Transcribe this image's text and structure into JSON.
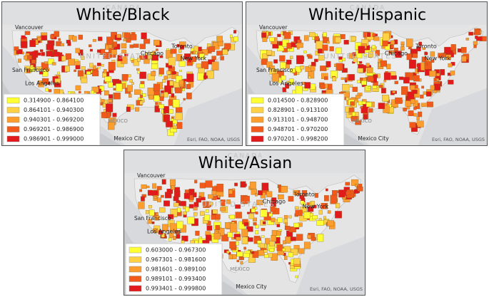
{
  "panels": [
    {
      "title": "White/Black",
      "legend": [
        {
          "label": "0.314900 - 0.864100",
          "color": "#ffff33"
        },
        {
          "label": "0.864101 - 0.940300",
          "color": "#fed045"
        },
        {
          "label": "0.940301 - 0.969200",
          "color": "#fd9d2e"
        },
        {
          "label": "0.969201 - 0.986900",
          "color": "#f25a1c"
        },
        {
          "label": "0.986901 - 0.999000",
          "color": "#e31a1c"
        }
      ],
      "places": [
        "CANADA",
        "Vancouver",
        "San Francisco",
        "Los Angeles",
        "Chicago",
        "Toronto",
        "New York",
        "UNITED STATES",
        "MÉXICO",
        "Mexico City"
      ],
      "attribution": "Esri, FAO, NOAA, USGS"
    },
    {
      "title": "White/Hispanic",
      "legend": [
        {
          "label": "0.014500 - 0.828900",
          "color": "#ffff33"
        },
        {
          "label": "0.828901 - 0.913100",
          "color": "#fed045"
        },
        {
          "label": "0.913101 - 0.948700",
          "color": "#fd9d2e"
        },
        {
          "label": "0.948701 - 0.970200",
          "color": "#f25a1c"
        },
        {
          "label": "0.970201 - 0.998200",
          "color": "#e31a1c"
        }
      ],
      "places": [
        "CANADA",
        "Vancouver",
        "San Francisco",
        "Los Angeles",
        "Chicago",
        "Toronto",
        "New York",
        "UNITED STATES",
        "MÉXICO",
        "Mexico City"
      ],
      "attribution": "Esri, FAO, NOAA, USGS"
    },
    {
      "title": "White/Asian",
      "legend": [
        {
          "label": "0.603000 - 0.967300",
          "color": "#ffff33"
        },
        {
          "label": "0.967301 - 0.981600",
          "color": "#fed045"
        },
        {
          "label": "0.981601 - 0.989100",
          "color": "#fd9d2e"
        },
        {
          "label": "0.989101 - 0.993400",
          "color": "#f25a1c"
        },
        {
          "label": "0.993401 - 0.999800",
          "color": "#e31a1c"
        }
      ],
      "places": [
        "CANADA",
        "Vancouver",
        "San Francisco",
        "Los Angeles",
        "Chicago",
        "Toronto",
        "New York",
        "UNITED STATES",
        "MÉXICO",
        "Mexico City"
      ],
      "attribution": "Esri, FAO, NOAA, USGS"
    }
  ]
}
